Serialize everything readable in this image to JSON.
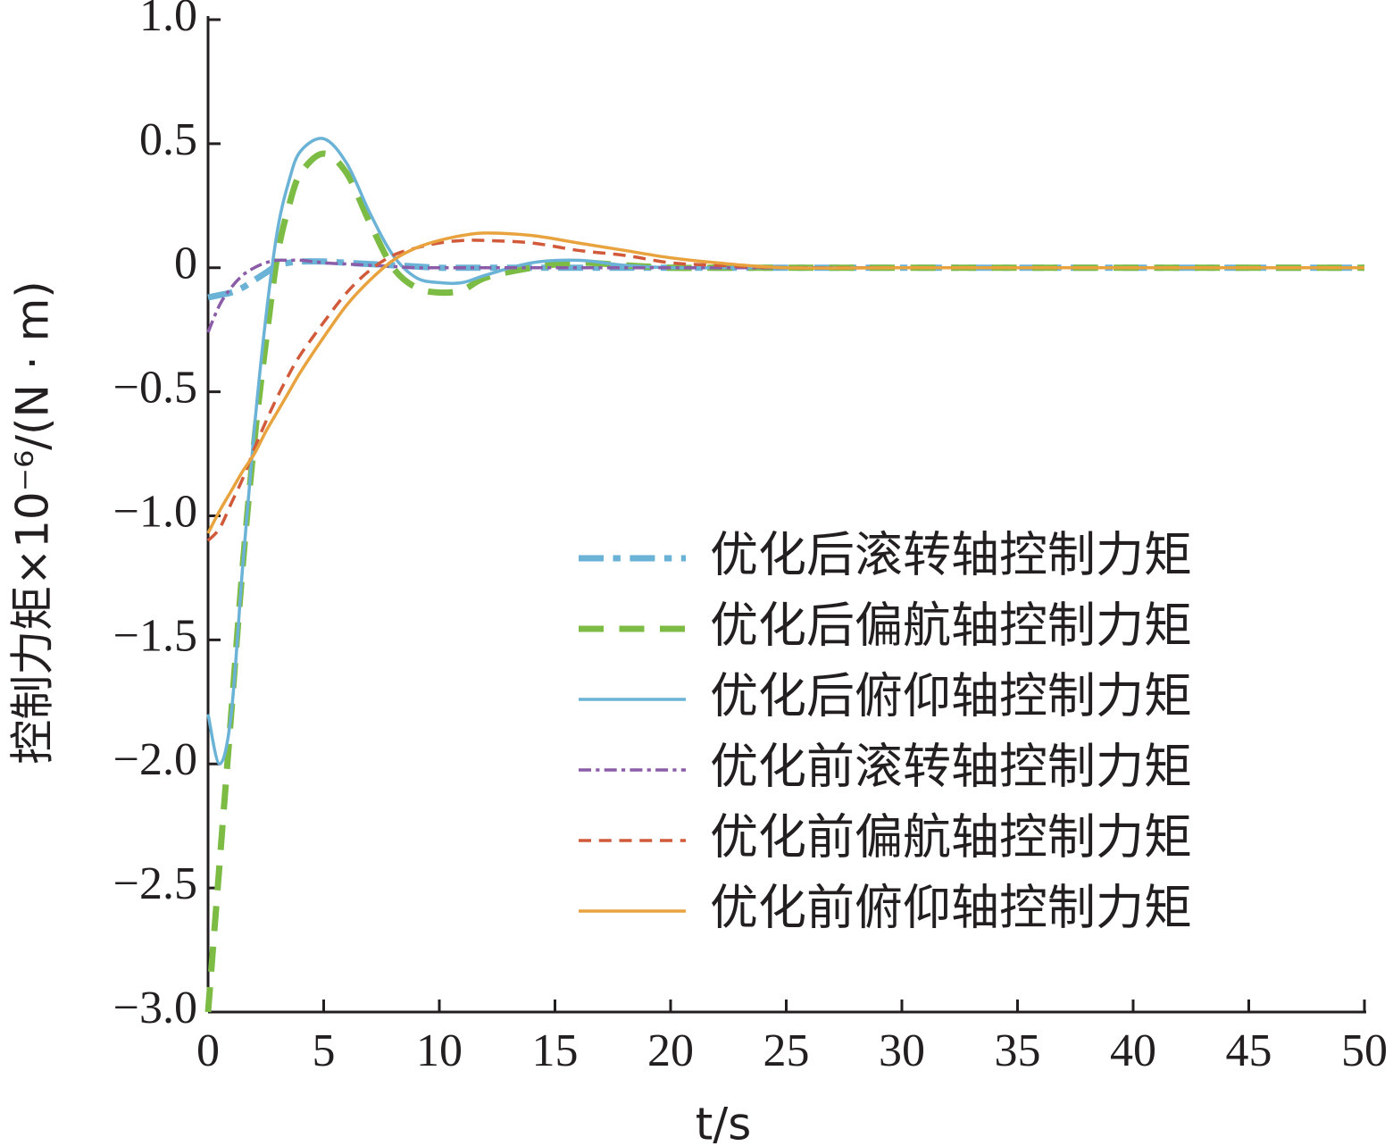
{
  "chart_data": {
    "type": "line",
    "x_label": "t/s",
    "y_label": "控制力矩×10⁻⁶/(N · m)",
    "xlim": [
      0,
      50
    ],
    "xticks": [
      0,
      5,
      10,
      15,
      20,
      25,
      30,
      35,
      40,
      45,
      50
    ],
    "ylim": [
      -3,
      1
    ],
    "yticks": [
      {
        "value": -3,
        "label": "−3.0"
      },
      {
        "value": -2.5,
        "label": "−2.5"
      },
      {
        "value": -2,
        "label": "−2.0"
      },
      {
        "value": -1.5,
        "label": "−1.5"
      },
      {
        "value": -1,
        "label": "−1.0"
      },
      {
        "value": -0.5,
        "label": "−0.5"
      },
      0,
      0.5,
      {
        "value": 1,
        "label": "1.0"
      }
    ],
    "legend": "lower right",
    "x": [
      0,
      0.5,
      1,
      1.5,
      2,
      2.5,
      3,
      3.5,
      4,
      5,
      6,
      7,
      8,
      9,
      10,
      11,
      12,
      14,
      16,
      18,
      20,
      22,
      25,
      30,
      40,
      50
    ],
    "series": [
      {
        "name": "优化后滚转轴控制力矩",
        "color": "#6bb3d6",
        "style": "dashdot",
        "weight": "thick",
        "values": [
          -0.12,
          -0.11,
          -0.1,
          -0.08,
          -0.05,
          -0.02,
          0.01,
          0.02,
          0.025,
          0.025,
          0.02,
          0.015,
          0.01,
          0.005,
          0,
          0,
          0,
          0,
          0,
          0,
          0,
          0,
          0,
          0,
          0,
          0
        ]
      },
      {
        "name": "优化后偏航轴控制力矩",
        "color": "#7cbc44",
        "style": "dash",
        "weight": "thick",
        "values": [
          -3,
          -2.4,
          -1.8,
          -1.2,
          -0.7,
          -0.3,
          0.05,
          0.25,
          0.38,
          0.46,
          0.38,
          0.18,
          0,
          -0.08,
          -0.1,
          -0.09,
          -0.04,
          0,
          0.02,
          0.01,
          0,
          0,
          0,
          0,
          0,
          0
        ]
      },
      {
        "name": "优化后俯仰轴控制力矩",
        "color": "#6bb3d6",
        "style": "solid",
        "weight": "thin",
        "values": [
          -1.8,
          -2,
          -1.8,
          -1.2,
          -0.65,
          -0.2,
          0.15,
          0.35,
          0.47,
          0.52,
          0.42,
          0.22,
          0.05,
          -0.04,
          -0.06,
          -0.06,
          -0.03,
          0.02,
          0.03,
          0.01,
          0,
          0,
          0,
          0,
          0,
          0
        ]
      },
      {
        "name": "优化前滚转轴控制力矩",
        "color": "#8b5ca8",
        "style": "dashdot",
        "weight": "thin",
        "values": [
          -0.26,
          -0.15,
          -0.08,
          -0.03,
          0,
          0.02,
          0.03,
          0.03,
          0.03,
          0.02,
          0.015,
          0.01,
          0.005,
          0,
          0,
          0,
          0,
          0,
          0,
          0,
          0,
          0,
          0,
          0,
          0,
          0
        ]
      },
      {
        "name": "优化前偏航轴控制力矩",
        "color": "#d05a3a",
        "style": "dash",
        "weight": "thin",
        "values": [
          -1.1,
          -1.05,
          -0.95,
          -0.85,
          -0.73,
          -0.62,
          -0.52,
          -0.43,
          -0.35,
          -0.22,
          -0.1,
          -0.01,
          0.05,
          0.08,
          0.1,
          0.11,
          0.11,
          0.1,
          0.07,
          0.05,
          0.02,
          0.01,
          0,
          0,
          0,
          0
        ]
      },
      {
        "name": "优化前俯仰轴控制力矩",
        "color": "#e8a33e",
        "style": "solid",
        "weight": "thin",
        "values": [
          -1.07,
          -0.98,
          -0.9,
          -0.82,
          -0.75,
          -0.66,
          -0.58,
          -0.5,
          -0.42,
          -0.28,
          -0.15,
          -0.05,
          0.03,
          0.08,
          0.11,
          0.13,
          0.14,
          0.13,
          0.1,
          0.07,
          0.04,
          0.02,
          0,
          0,
          0,
          0
        ]
      }
    ]
  }
}
